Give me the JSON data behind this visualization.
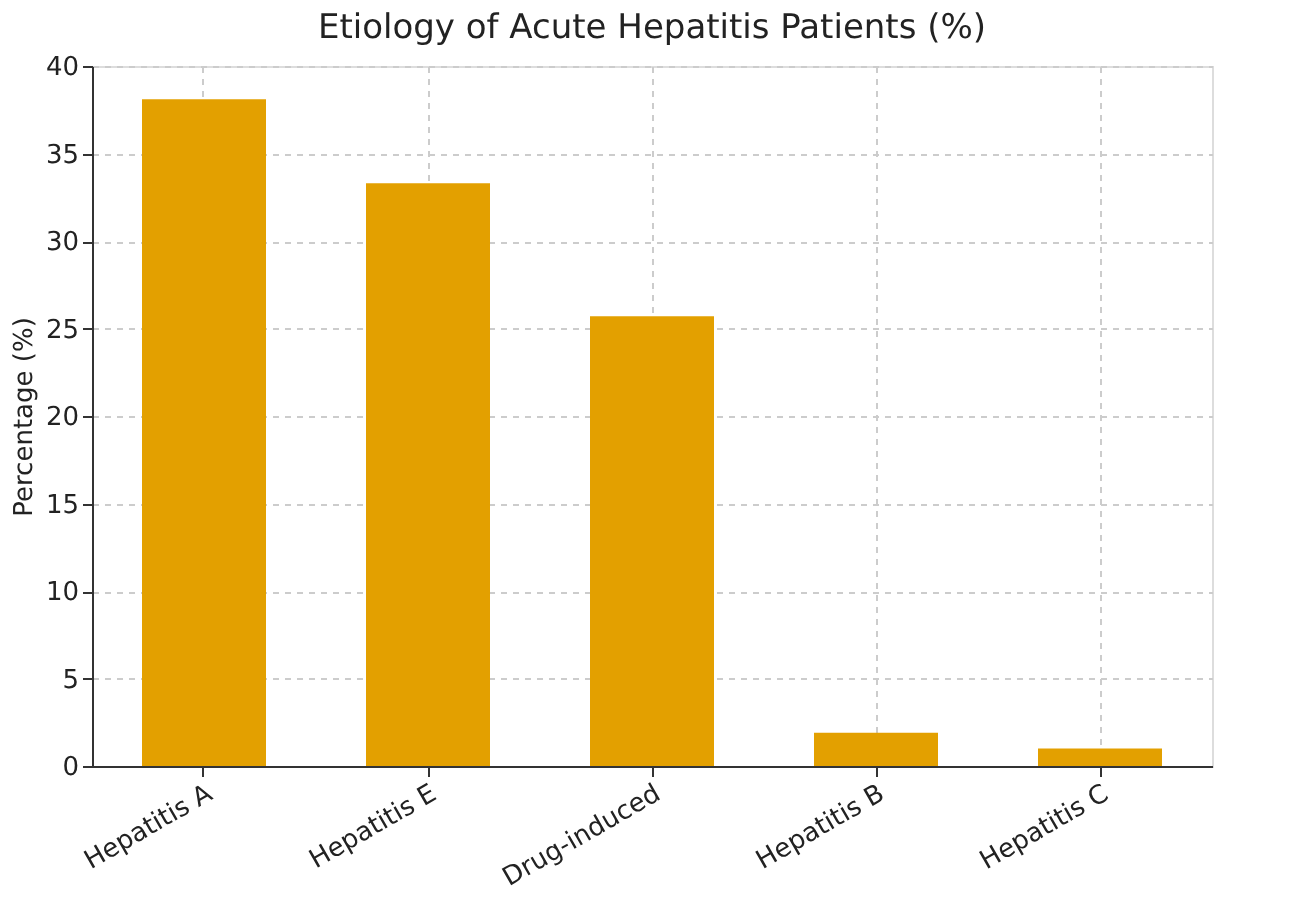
{
  "chart_data": {
    "type": "bar",
    "title": "Etiology of Acute Hepatitis Patients (%)",
    "ylabel": "Percentage (%)",
    "categories": [
      "Hepatitis A",
      "Hepatitis E",
      "Drug-induced",
      "Hepatitis B",
      "Hepatitis C"
    ],
    "values": [
      38.1,
      33.3,
      25.7,
      1.9,
      1.0
    ],
    "color": "#e3a000",
    "ylim": [
      0,
      40
    ],
    "yticks": [
      0,
      5,
      10,
      15,
      20,
      25,
      30,
      35,
      40
    ],
    "grid": true
  }
}
